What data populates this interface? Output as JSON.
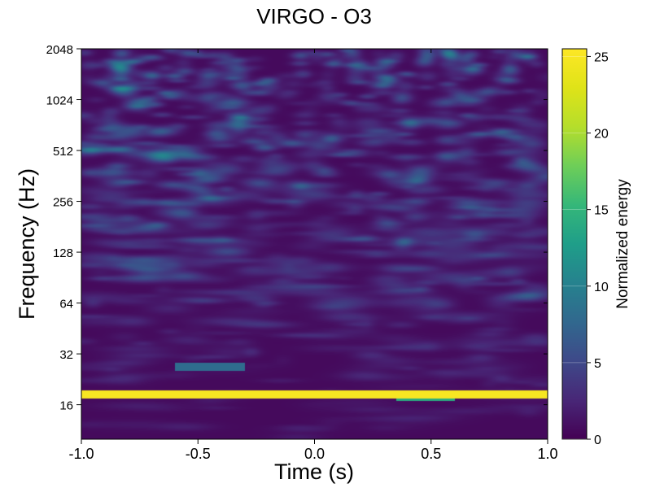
{
  "chart_data": {
    "type": "heatmap",
    "title": "VIRGO - O3",
    "xlabel": "Time (s)",
    "ylabel": "Frequency (Hz)",
    "xlim": [
      -1.0,
      1.0
    ],
    "ylim": [
      10,
      2048
    ],
    "yscale": "log2",
    "x_ticks": [
      -1.0,
      -0.5,
      0.0,
      0.5,
      1.0
    ],
    "x_tick_labels": [
      "-1.0",
      "-0.5",
      "0.0",
      "0.5",
      "1.0"
    ],
    "y_ticks": [
      16,
      32,
      64,
      128,
      256,
      512,
      1024,
      2048
    ],
    "y_tick_labels": [
      "16",
      "32",
      "64",
      "128",
      "256",
      "512",
      "1024",
      "2048"
    ],
    "colorbar": {
      "label": "Normalized energy",
      "range": [
        0,
        25.5
      ],
      "ticks": [
        0,
        5,
        10,
        15,
        20,
        25
      ],
      "tick_labels": [
        "0",
        "5",
        "10",
        "15",
        "20",
        "25"
      ],
      "colormap": "viridis"
    },
    "features": [
      {
        "band_hz": [
          17.5,
          19.5
        ],
        "time_s": [
          -1.0,
          1.0
        ],
        "energy": 25
      },
      {
        "band_hz": [
          17.0,
          17.8
        ],
        "time_s": [
          0.35,
          0.6
        ],
        "energy": 14
      },
      {
        "band_hz": [
          25.5,
          28.5
        ],
        "time_s": [
          -0.6,
          -0.3
        ],
        "energy": 8
      }
    ]
  }
}
